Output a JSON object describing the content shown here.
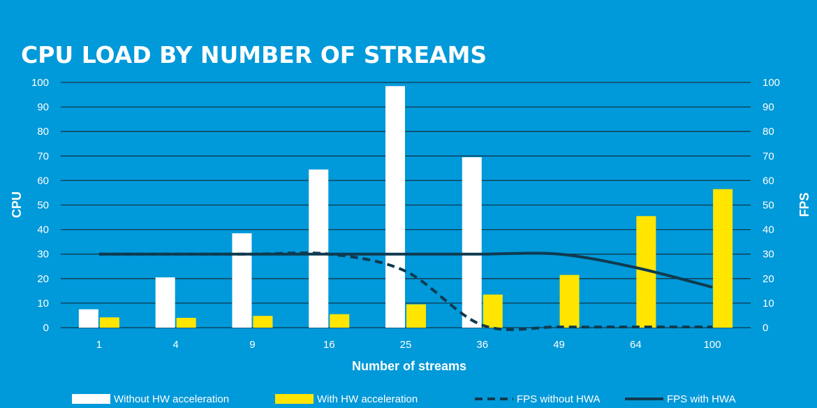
{
  "chart_data": {
    "type": "bar",
    "title": "CPU LOAD BY NUMBER OF STREAMS",
    "xlabel": "Number of streams",
    "ylabel": "CPU",
    "y2label": "FPS",
    "ylim": [
      0,
      100
    ],
    "y2lim": [
      0,
      100
    ],
    "yticks": [
      "0",
      "10",
      "20",
      "30",
      "40",
      "50",
      "60",
      "70",
      "80",
      "90",
      "100"
    ],
    "y2ticks": [
      "0",
      "10",
      "20",
      "30",
      "40",
      "50",
      "60",
      "70",
      "80",
      "90",
      "100"
    ],
    "grid": true,
    "legend_position": "bottom",
    "categories": [
      "1",
      "4",
      "9",
      "16",
      "25",
      "36",
      "49",
      "64",
      "100"
    ],
    "series": [
      {
        "name": "Without HW acceleration",
        "kind": "bar",
        "axis": "left",
        "color": "#ffffff",
        "values": [
          7.5,
          20.5,
          38.5,
          64.5,
          98.5,
          69.5,
          null,
          null,
          null
        ]
      },
      {
        "name": "With HW acceleration",
        "kind": "bar",
        "axis": "left",
        "color": "#ffe500",
        "values": [
          4.2,
          4,
          4.8,
          5.5,
          9.5,
          13.5,
          21.5,
          45.5,
          56.5
        ]
      },
      {
        "name": "FPS without HWA",
        "kind": "line",
        "style": "dashed",
        "axis": "right",
        "color": "#0f3a4f",
        "values": [
          30,
          30,
          30,
          30,
          23,
          1,
          0.3,
          0.3,
          0.3
        ]
      },
      {
        "name": "FPS with HWA",
        "kind": "line",
        "style": "solid",
        "axis": "right",
        "color": "#0f3a4f",
        "values": [
          30,
          30,
          30,
          30,
          30,
          30,
          30,
          24.5,
          16.5
        ]
      }
    ]
  }
}
